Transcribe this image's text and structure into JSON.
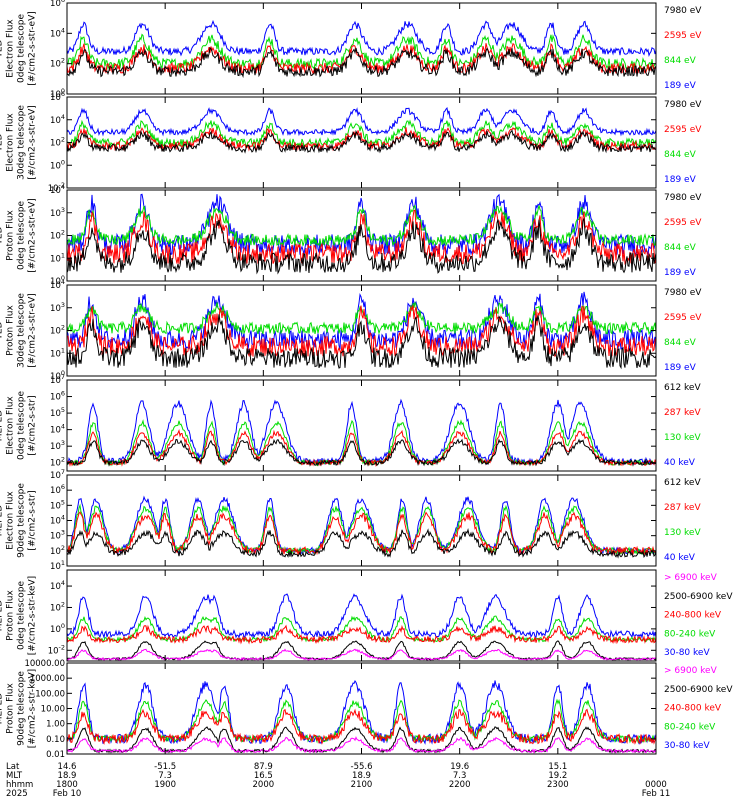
{
  "figure": {
    "x_axis": {
      "row_labels": [
        "Lat",
        "MLT",
        "hhmm",
        "2025"
      ],
      "lat": [
        "14.6",
        "-51.5",
        "87.9",
        "-55.6",
        "19.6",
        "15.1"
      ],
      "mlt": [
        "18.9",
        "7.3",
        "16.5",
        "18.9",
        "7.3",
        "19.2"
      ],
      "hhmm": [
        "1800",
        "1900",
        "2000",
        "2100",
        "2200",
        "2300",
        "0000"
      ],
      "date": [
        "Feb 10",
        "Feb 11"
      ]
    }
  },
  "chart_data": [
    {
      "type": "line",
      "ylabel": "TED\nElectron Flux\n0deg telescope\n[#/cm2-s-str-eV]",
      "y_tick_labels": [
        "10^6",
        "10^4",
        "10^2",
        "10^0"
      ],
      "ylim_log10": [
        0,
        6
      ],
      "series": [
        {
          "name": "7980 eV",
          "color": "#000000",
          "base_log": 1.5,
          "peak_log": 2.7,
          "noise": 0.35
        },
        {
          "name": "2595 eV",
          "color": "#ff0000",
          "base_log": 1.7,
          "peak_log": 3.0,
          "noise": 0.35
        },
        {
          "name": "844 eV",
          "color": "#00dd00",
          "base_log": 2.0,
          "peak_log": 3.6,
          "noise": 0.35
        },
        {
          "name": "189 eV",
          "color": "#0000ff",
          "base_log": 2.8,
          "peak_log": 4.6,
          "noise": 0.25
        }
      ],
      "peaks_hhmm": [
        "1810",
        "1846",
        "1928",
        "2004",
        "2056",
        "2128",
        "2152",
        "2216",
        "2232",
        "2256",
        "2316"
      ]
    },
    {
      "type": "line",
      "ylabel": "TED\nElectron Flux\n30deg telescope\n[#/cm2-s-str-eV]",
      "y_tick_labels": [
        "10^6",
        "10^4",
        "10^2",
        "10^0",
        "10^-2"
      ],
      "ylim_log10": [
        -2,
        6
      ],
      "series": [
        {
          "name": "7980 eV",
          "color": "#000000",
          "base_log": 1.5,
          "peak_log": 2.7,
          "noise": 0.35
        },
        {
          "name": "2595 eV",
          "color": "#ff0000",
          "base_log": 1.7,
          "peak_log": 3.0,
          "noise": 0.35
        },
        {
          "name": "844 eV",
          "color": "#00dd00",
          "base_log": 2.0,
          "peak_log": 3.6,
          "noise": 0.35
        },
        {
          "name": "189 eV",
          "color": "#0000ff",
          "base_log": 2.9,
          "peak_log": 4.8,
          "noise": 0.25
        }
      ],
      "peaks_hhmm": [
        "1810",
        "1846",
        "1928",
        "2004",
        "2056",
        "2128",
        "2152",
        "2216",
        "2232",
        "2256",
        "2316"
      ]
    },
    {
      "type": "line",
      "ylabel": "TED\nProton Flux\n0deg telescope\n[#/cm2-s-str-eV]",
      "y_tick_labels": [
        "10^4",
        "10^3",
        "10^2",
        "10^1",
        "10^0"
      ],
      "ylim_log10": [
        0,
        4
      ],
      "series": [
        {
          "name": "7980 eV",
          "color": "#000000",
          "base_log": 0.8,
          "peak_log": 2.3,
          "noise": 0.45
        },
        {
          "name": "2595 eV",
          "color": "#ff0000",
          "base_log": 1.2,
          "peak_log": 2.7,
          "noise": 0.45
        },
        {
          "name": "844 eV",
          "color": "#00dd00",
          "base_log": 1.8,
          "peak_log": 3.1,
          "noise": 0.25
        },
        {
          "name": "189 eV",
          "color": "#0000ff",
          "base_log": 1.6,
          "peak_log": 3.4,
          "noise": 0.45
        }
      ],
      "peaks_hhmm": [
        "1815",
        "1846",
        "1932",
        "2100",
        "2132",
        "2224",
        "2248",
        "2316"
      ]
    },
    {
      "type": "line",
      "ylabel": "TED\nProton Flux\n30deg telescope\n[#/cm2-s-str-eV]",
      "y_tick_labels": [
        "10^4",
        "10^3",
        "10^2",
        "10^1",
        "10^0"
      ],
      "ylim_log10": [
        0,
        4
      ],
      "series": [
        {
          "name": "7980 eV",
          "color": "#000000",
          "base_log": 0.8,
          "peak_log": 2.3,
          "noise": 0.45
        },
        {
          "name": "2595 eV",
          "color": "#ff0000",
          "base_log": 1.3,
          "peak_log": 2.7,
          "noise": 0.45
        },
        {
          "name": "844 eV",
          "color": "#00dd00",
          "base_log": 2.1,
          "peak_log": 3.0,
          "noise": 0.25
        },
        {
          "name": "189 eV",
          "color": "#0000ff",
          "base_log": 1.6,
          "peak_log": 3.3,
          "noise": 0.45
        }
      ],
      "peaks_hhmm": [
        "1815",
        "1846",
        "1932",
        "2100",
        "2132",
        "2224",
        "2248",
        "2316"
      ]
    },
    {
      "type": "line",
      "ylabel": "MEPED\nElectron Flux\n0deg telescope\n[#/cm2-s-str]",
      "y_tick_labels": [
        "10^7",
        "10^6",
        "10^5",
        "10^4",
        "10^3",
        "10^2"
      ],
      "ylim_log10": [
        1.5,
        7
      ],
      "series": [
        {
          "name": "612 keV",
          "color": "#000000",
          "base_log": 2.0,
          "peak_log": 3.3,
          "noise": 0.15
        },
        {
          "name": "287 keV",
          "color": "#ff0000",
          "base_log": 2.0,
          "peak_log": 3.8,
          "noise": 0.15
        },
        {
          "name": "130 keV",
          "color": "#00dd00",
          "base_log": 2.0,
          "peak_log": 4.4,
          "noise": 0.15
        },
        {
          "name": "40 keV",
          "color": "#0000ff",
          "base_log": 2.1,
          "peak_log": 5.6,
          "noise": 0.2
        }
      ],
      "peaks_hhmm": [
        "1816",
        "1846",
        "1908",
        "1928",
        "1948",
        "2008",
        "2054",
        "2124",
        "2200",
        "2225",
        "2300",
        "2314"
      ]
    },
    {
      "type": "line",
      "ylabel": "MEPED\nElectron Flux\n90deg telescope\n[#/cm2-s-str]",
      "y_tick_labels": [
        "10^7",
        "10^6",
        "10^5",
        "10^4",
        "10^3",
        "10^2",
        "10^1"
      ],
      "ylim_log10": [
        1,
        7
      ],
      "series": [
        {
          "name": "612 keV",
          "color": "#000000",
          "base_log": 1.8,
          "peak_log": 3.2,
          "noise": 0.2
        },
        {
          "name": "287 keV",
          "color": "#ff0000",
          "base_log": 2.0,
          "peak_log": 4.3,
          "noise": 0.25
        },
        {
          "name": "130 keV",
          "color": "#00dd00",
          "base_log": 2.0,
          "peak_log": 4.8,
          "noise": 0.2
        },
        {
          "name": "40 keV",
          "color": "#0000ff",
          "base_log": 2.0,
          "peak_log": 5.4,
          "noise": 0.2
        }
      ],
      "peaks_hhmm": [
        "1808",
        "1818",
        "1848",
        "1900",
        "1920",
        "1936",
        "2004",
        "2044",
        "2100",
        "2125",
        "2140",
        "2205",
        "2228",
        "2252",
        "2310"
      ]
    },
    {
      "type": "line",
      "ylabel": "MEPED\nProton Flux\n0deg telescope\n[#/cm2-s-str-keV]",
      "y_tick_labels": [
        "10^4",
        "10^2",
        "10^0",
        "10^-2"
      ],
      "ylim_log10": [
        -3,
        5.5
      ],
      "series": [
        {
          "name": "> 6900 keV",
          "color": "#ff00ff",
          "base_log": -2.8,
          "peak_log": -2.0,
          "noise": 0.1
        },
        {
          "name": "2500-6900 keV",
          "color": "#000000",
          "base_log": -2.8,
          "peak_log": -1.2,
          "noise": 0.1
        },
        {
          "name": "240-800 keV",
          "color": "#ff0000",
          "base_log": -1.0,
          "peak_log": 0.0,
          "noise": 0.3
        },
        {
          "name": "80-240 keV",
          "color": "#00dd00",
          "base_log": -1.0,
          "peak_log": 1.0,
          "noise": 0.2
        },
        {
          "name": "30-80 keV",
          "color": "#0000ff",
          "base_log": -0.5,
          "peak_log": 3.0,
          "noise": 0.3
        }
      ],
      "peaks_hhmm": [
        "1810",
        "1848",
        "1925",
        "1930",
        "2014",
        "2056",
        "2124",
        "2200",
        "2222",
        "2300",
        "2318"
      ]
    },
    {
      "type": "line",
      "ylabel": "MEPED\nProton Flux\n90deg telescope\n[#/cm2-s-str-keV]",
      "y_tick_labels": [
        "10000.00",
        "1000.00",
        "100.00",
        "10.00",
        "1.00",
        "0.10",
        "0.01"
      ],
      "ylim_log10": [
        -2,
        4
      ],
      "series": [
        {
          "name": "> 6900 keV",
          "color": "#ff00ff",
          "base_log": -1.8,
          "peak_log": -1.0,
          "noise": 0.1
        },
        {
          "name": "2500-6900 keV",
          "color": "#000000",
          "base_log": -1.8,
          "peak_log": -0.3,
          "noise": 0.1
        },
        {
          "name": "240-800 keV",
          "color": "#ff0000",
          "base_log": -1.0,
          "peak_log": 0.7,
          "noise": 0.3
        },
        {
          "name": "80-240 keV",
          "color": "#00dd00",
          "base_log": -1.0,
          "peak_log": 1.4,
          "noise": 0.2
        },
        {
          "name": "30-80 keV",
          "color": "#0000ff",
          "base_log": -1.0,
          "peak_log": 2.6,
          "noise": 0.3
        }
      ],
      "peaks_hhmm": [
        "1810",
        "1848",
        "1925",
        "1936",
        "2014",
        "2056",
        "2124",
        "2200",
        "2222",
        "2300",
        "2318"
      ]
    }
  ]
}
